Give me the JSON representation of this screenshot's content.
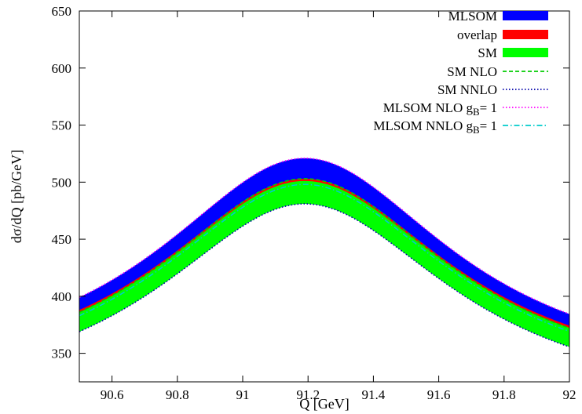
{
  "chart_data": {
    "type": "area",
    "title": "",
    "xlabel": "Q  [GeV]",
    "ylabel": "dσ/dQ [pb/GeV]",
    "xlim": [
      90.5,
      92
    ],
    "ylim": [
      325,
      650
    ],
    "x_ticks": [
      90.6,
      90.8,
      91,
      91.2,
      91.4,
      91.6,
      91.8,
      92
    ],
    "x_tick_labels": [
      "90.6",
      "90.8",
      "91",
      "91.2",
      "91.4",
      "91.6",
      "91.8",
      "92"
    ],
    "y_ticks": [
      350,
      400,
      450,
      500,
      550,
      600,
      650
    ],
    "y_tick_labels": [
      "350",
      "400",
      "450",
      "500",
      "550",
      "600",
      "650"
    ],
    "grid": false,
    "legend_position": "top-right",
    "peak_x": 91.19,
    "peak_width": 0.55,
    "series": [
      {
        "name": "MLSOM",
        "kind": "band",
        "color": "#0000ff",
        "lower_peak": 481,
        "upper_peak": 521,
        "lower_at_90_5": 369,
        "upper_at_90_5": 399
      },
      {
        "name": "overlap",
        "kind": "band",
        "color": "#ff0000",
        "lower_peak": 497,
        "upper_peak": 503,
        "lower_at_90_5": 383,
        "upper_at_90_5": 388
      },
      {
        "name": "SM",
        "kind": "band",
        "color": "#00ff00",
        "lower_peak": 481,
        "upper_peak": 501,
        "lower_at_90_5": 369,
        "upper_at_90_5": 386
      },
      {
        "name": "SM NLO",
        "kind": "line",
        "dash": "dashed",
        "color": "#00cc00",
        "peak": 503,
        "at_90_5": 386
      },
      {
        "name": "SM NNLO",
        "kind": "line",
        "dash": "dotted",
        "color": "#0000aa",
        "peak": 481,
        "at_90_5": 369
      },
      {
        "name": "MLSOM NLO g_B = 1",
        "label_main": "MLSOM NLO g",
        "label_sub": "B",
        "label_tail": "=  1",
        "kind": "line",
        "dash": "dotted",
        "color": "#ff00ff",
        "peak": 521,
        "at_90_5": 399
      },
      {
        "name": "MLSOM NNLO g_B= 1",
        "label_main": "MLSOM NNLO g",
        "label_sub": "B",
        "label_tail": "=  1",
        "kind": "line",
        "dash": "dashdot",
        "color": "#00cccc",
        "peak": 498,
        "at_90_5": 383
      }
    ]
  }
}
